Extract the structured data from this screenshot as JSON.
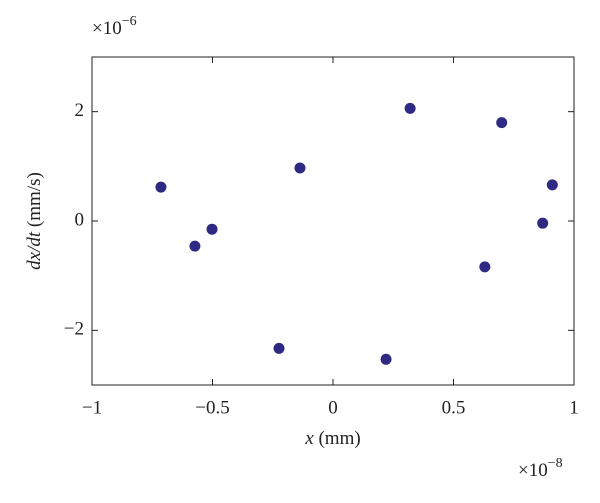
{
  "chart_data": {
    "type": "scatter",
    "xlabel": {
      "var": "x",
      "unit": "(mm)"
    },
    "ylabel": {
      "var": "dx/dt",
      "unit": "(mm/s)"
    },
    "x_multiplier": {
      "base": "×10",
      "exponent": "−8"
    },
    "y_multiplier": {
      "base": "×10",
      "exponent": "−6"
    },
    "series": [
      {
        "color": "#2e2a84",
        "x": [
          -0.714,
          -0.573,
          -0.502,
          -0.137,
          -0.224,
          0.22,
          0.32,
          0.7,
          0.91,
          0.87,
          0.63
        ],
        "values": [
          0.62,
          -0.46,
          -0.15,
          0.97,
          -2.33,
          -2.53,
          2.06,
          1.8,
          0.66,
          -0.04,
          -0.84
        ]
      }
    ],
    "xlim": [
      -1,
      1
    ],
    "xticks": [
      {
        "value": -1,
        "label": "−1"
      },
      {
        "value": -0.5,
        "label": "−0.5"
      },
      0,
      0.5,
      1
    ],
    "ylim": [
      -3,
      3
    ],
    "yticks": [
      {
        "value": -2,
        "label": "−2"
      },
      0,
      2
    ],
    "grid": false
  }
}
